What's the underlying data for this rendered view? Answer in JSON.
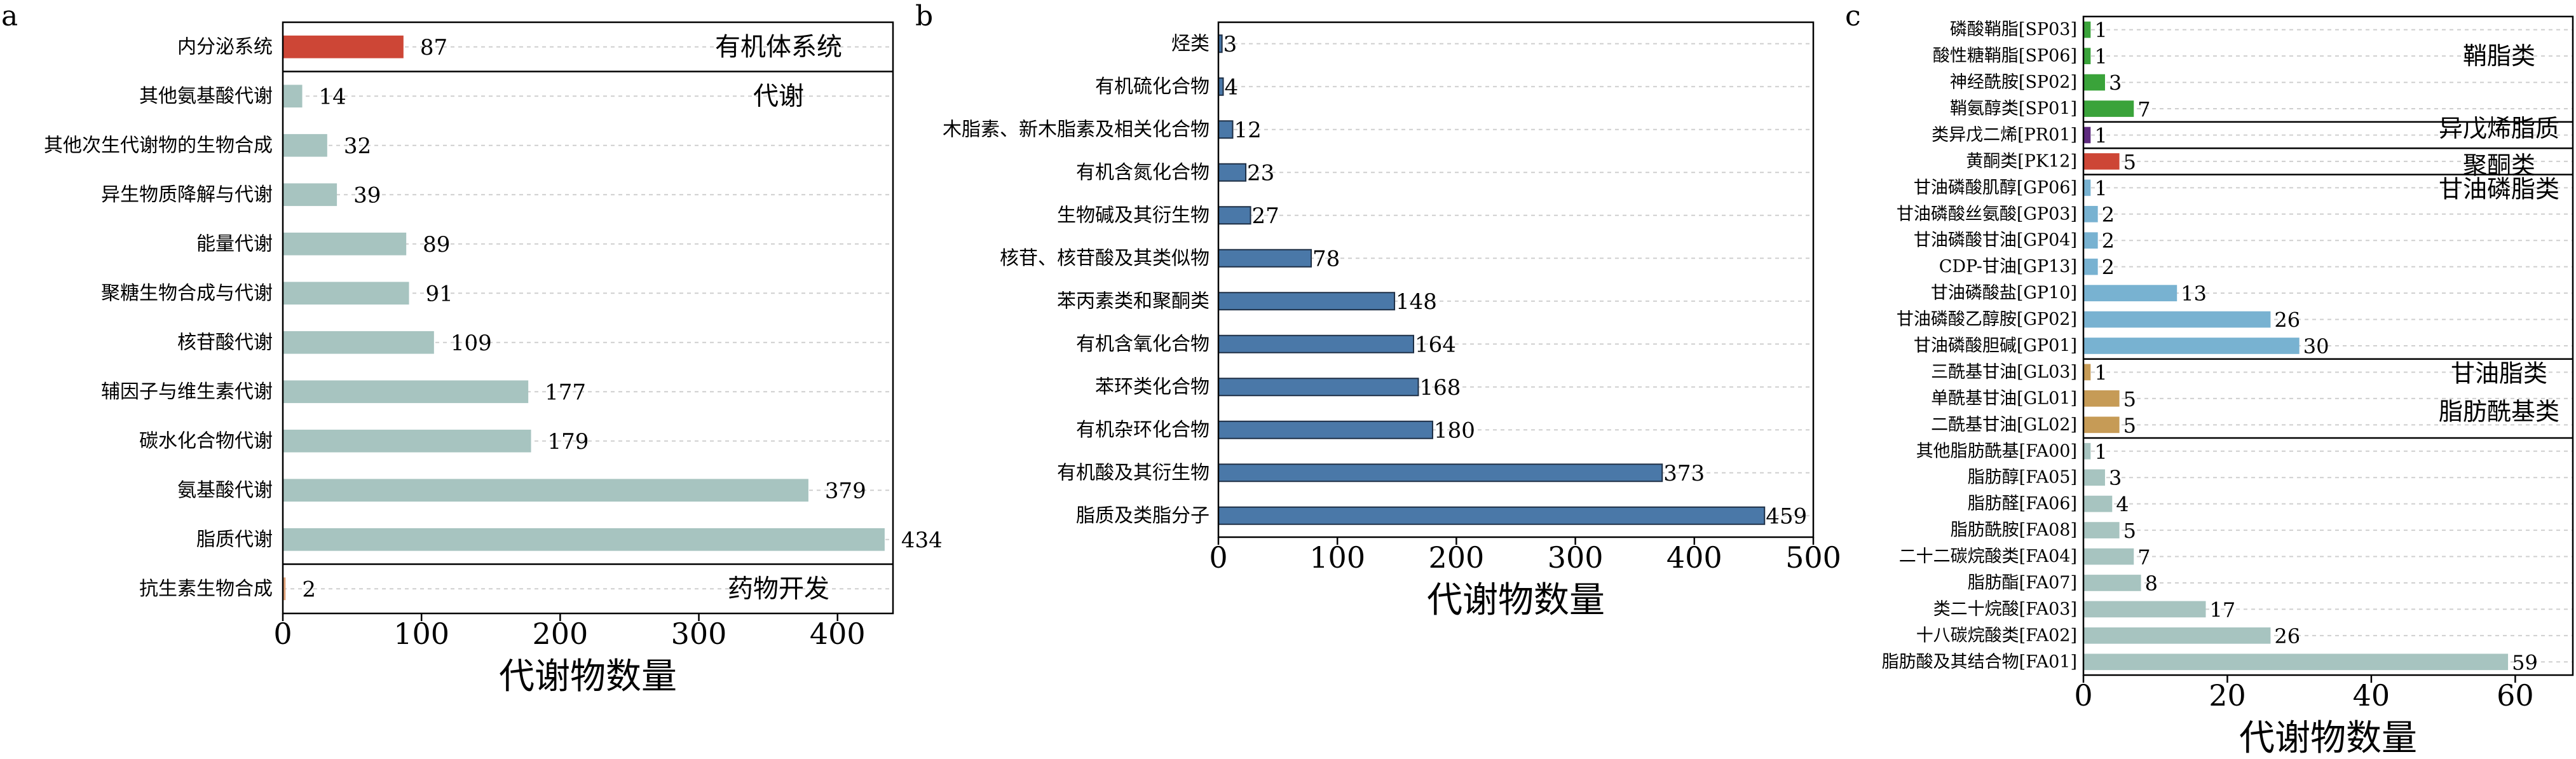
{
  "xlabel": "代谢物数量",
  "colors": {
    "red": "#cd4636",
    "sage": "#a7c4c0",
    "orange": "#e3a67e",
    "blue": "#4a78a8",
    "green": "#3aa33a",
    "purple": "#5e2a7e",
    "lightblue": "#78b2d1",
    "tan": "#c69b56"
  },
  "chart_data": [
    {
      "id": "a",
      "panel_label": "a",
      "type": "bar",
      "orientation": "horizontal",
      "xlabel": "代谢物数量",
      "xlim": [
        0,
        440
      ],
      "xticks": [
        0,
        100,
        200,
        300,
        400
      ],
      "grid": true,
      "groups": [
        {
          "name": "有机体系统",
          "items": [
            {
              "label": "内分泌系统",
              "value": 87,
              "color": "red"
            }
          ]
        },
        {
          "name": "代谢",
          "items": [
            {
              "label": "其他氨基酸代谢",
              "value": 14,
              "color": "sage"
            },
            {
              "label": "其他次生代谢物的生物合成",
              "value": 32,
              "color": "sage"
            },
            {
              "label": "异生物质降解与代谢",
              "value": 39,
              "color": "sage"
            },
            {
              "label": "能量代谢",
              "value": 89,
              "color": "sage"
            },
            {
              "label": "聚糖生物合成与代谢",
              "value": 91,
              "color": "sage"
            },
            {
              "label": "核苷酸代谢",
              "value": 109,
              "color": "sage"
            },
            {
              "label": "辅因子与维生素代谢",
              "value": 177,
              "color": "sage"
            },
            {
              "label": "碳水化合物代谢",
              "value": 179,
              "color": "sage"
            },
            {
              "label": "氨基酸代谢",
              "value": 379,
              "color": "sage"
            },
            {
              "label": "脂质代谢",
              "value": 434,
              "color": "sage"
            }
          ]
        },
        {
          "name": "药物开发",
          "items": [
            {
              "label": "抗生素生物合成",
              "value": 2,
              "color": "orange"
            }
          ]
        }
      ]
    },
    {
      "id": "b",
      "panel_label": "b",
      "type": "bar",
      "orientation": "horizontal",
      "xlabel": "代谢物数量",
      "xlim": [
        0,
        500
      ],
      "xticks": [
        0,
        100,
        200,
        300,
        400,
        500
      ],
      "grid": true,
      "groups": [
        {
          "name": "",
          "items": [
            {
              "label": "烃类",
              "value": 3,
              "color": "blue"
            },
            {
              "label": "有机硫化合物",
              "value": 4,
              "color": "blue"
            },
            {
              "label": "木脂素、新木脂素及相关化合物",
              "value": 12,
              "color": "blue"
            },
            {
              "label": "有机含氮化合物",
              "value": 23,
              "color": "blue"
            },
            {
              "label": "生物碱及其衍生物",
              "value": 27,
              "color": "blue"
            },
            {
              "label": "核苷、核苷酸及其类似物",
              "value": 78,
              "color": "blue"
            },
            {
              "label": "苯丙素类和聚酮类",
              "value": 148,
              "color": "blue"
            },
            {
              "label": "有机含氧化合物",
              "value": 164,
              "color": "blue"
            },
            {
              "label": "苯环类化合物",
              "value": 168,
              "color": "blue"
            },
            {
              "label": "有机杂环化合物",
              "value": 180,
              "color": "blue"
            },
            {
              "label": "有机酸及其衍生物",
              "value": 373,
              "color": "blue"
            },
            {
              "label": "脂质及类脂分子",
              "value": 459,
              "color": "blue"
            }
          ]
        }
      ]
    },
    {
      "id": "c",
      "panel_label": "c",
      "type": "bar",
      "orientation": "horizontal",
      "xlabel": "代谢物数量",
      "xlim": [
        0,
        68
      ],
      "xticks": [
        0,
        20,
        40,
        60
      ],
      "grid": true,
      "groups": [
        {
          "name": "鞘脂类",
          "items": [
            {
              "label": "磷酸鞘脂[SP03]",
              "value": 1,
              "color": "green"
            },
            {
              "label": "酸性糖鞘脂[SP06]",
              "value": 1,
              "color": "green"
            },
            {
              "label": "神经酰胺[SP02]",
              "value": 3,
              "color": "green"
            },
            {
              "label": "鞘氨醇类[SP01]",
              "value": 7,
              "color": "green"
            }
          ]
        },
        {
          "name": "异戊烯脂质",
          "items": [
            {
              "label": "类异戊二烯[PR01]",
              "value": 1,
              "color": "purple"
            }
          ]
        },
        {
          "name": "聚酮类",
          "items": [
            {
              "label": "黄酮类[PK12]",
              "value": 5,
              "color": "red"
            }
          ]
        },
        {
          "name": "甘油磷脂类",
          "items": [
            {
              "label": "甘油磷酸肌醇[GP06]",
              "value": 1,
              "color": "lightblue"
            },
            {
              "label": "甘油磷酸丝氨酸[GP03]",
              "value": 2,
              "color": "lightblue"
            },
            {
              "label": "甘油磷酸甘油[GP04]",
              "value": 2,
              "color": "lightblue"
            },
            {
              "label": "CDP-甘油[GP13]",
              "value": 2,
              "color": "lightblue"
            },
            {
              "label": "甘油磷酸盐[GP10]",
              "value": 13,
              "color": "lightblue"
            },
            {
              "label": "甘油磷酸乙醇胺[GP02]",
              "value": 26,
              "color": "lightblue"
            },
            {
              "label": "甘油磷酸胆碱[GP01]",
              "value": 30,
              "color": "lightblue"
            }
          ]
        },
        {
          "name": "甘油脂类",
          "items": [
            {
              "label": "三酰基甘油[GL03]",
              "value": 1,
              "color": "tan"
            },
            {
              "label": "单酰基甘油[GL01]",
              "value": 5,
              "color": "tan"
            },
            {
              "label": "二酰基甘油[GL02]",
              "value": 5,
              "color": "tan"
            }
          ]
        },
        {
          "name": "脂肪酰基类",
          "items": [
            {
              "label": "其他脂肪酰基[FA00]",
              "value": 1,
              "color": "sage"
            },
            {
              "label": "脂肪醇[FA05]",
              "value": 3,
              "color": "sage"
            },
            {
              "label": "脂肪醛[FA06]",
              "value": 4,
              "color": "sage"
            },
            {
              "label": "脂肪酰胺[FA08]",
              "value": 5,
              "color": "sage"
            },
            {
              "label": "二十二碳烷酸类[FA04]",
              "value": 7,
              "color": "sage"
            },
            {
              "label": "脂肪酯[FA07]",
              "value": 8,
              "color": "sage"
            },
            {
              "label": "类二十烷酸[FA03]",
              "value": 17,
              "color": "sage"
            },
            {
              "label": "十八碳烷酸类[FA02]",
              "value": 26,
              "color": "sage"
            },
            {
              "label": "脂肪酸及其结合物[FA01]",
              "value": 59,
              "color": "sage"
            }
          ]
        }
      ]
    }
  ]
}
